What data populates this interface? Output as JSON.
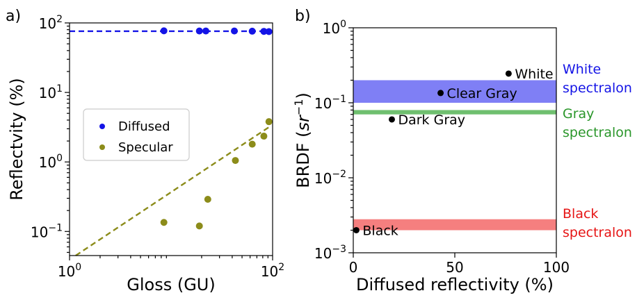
{
  "chart_data": [
    {
      "type": "scatter",
      "panel_label": "a)",
      "xlabel": "Gloss (GU)",
      "ylabel": "Reflectvity (%)",
      "xscale": "log",
      "yscale": "log",
      "xlim": [
        1,
        100
      ],
      "ylim": [
        0.045,
        100
      ],
      "x_ticks": [
        {
          "value": 1,
          "base": "10",
          "exp": "0"
        },
        {
          "value": 100,
          "base": "10",
          "exp": "2"
        }
      ],
      "y_ticks": [
        {
          "value": 0.1,
          "base": "10",
          "exp": "−1"
        },
        {
          "value": 1,
          "base": "10",
          "exp": "0"
        },
        {
          "value": 10,
          "base": "10",
          "exp": "1"
        },
        {
          "value": 100,
          "base": "10",
          "exp": "2"
        }
      ],
      "legend": {
        "position": "center-left"
      },
      "series": [
        {
          "name": "Diffused",
          "color": "#1414e6",
          "x": [
            8.5,
            19,
            22,
            42,
            63,
            82,
            92
          ],
          "y": [
            77,
            76.5,
            76.5,
            76.5,
            76,
            75.5,
            75
          ],
          "fit": {
            "x": [
              1,
              100
            ],
            "y": [
              76,
              76
            ]
          }
        },
        {
          "name": "Specular",
          "color": "#8c8c1a",
          "x": [
            8.5,
            19,
            23,
            43,
            63,
            82,
            92
          ],
          "y": [
            0.135,
            0.12,
            0.29,
            1.05,
            1.8,
            2.35,
            3.8
          ],
          "fit": {
            "x": [
              1.15,
              96
            ],
            "y": [
              0.045,
              3.3
            ]
          }
        }
      ]
    },
    {
      "type": "scatter",
      "panel_label": "b)",
      "xlabel": "Diffused reflectivity (%)",
      "ylabel_main": "BRDF (",
      "ylabel_unit": "sr",
      "ylabel_exp": "−1",
      "ylabel_close": ")",
      "xscale": "linear",
      "yscale": "log",
      "xlim": [
        0,
        100
      ],
      "ylim": [
        0.001,
        1
      ],
      "x_ticks": [
        {
          "value": 0,
          "label": "0"
        },
        {
          "value": 50,
          "label": "50"
        },
        {
          "value": 100,
          "label": "100"
        }
      ],
      "y_ticks": [
        {
          "value": 0.001,
          "base": "10",
          "exp": "−3"
        },
        {
          "value": 0.01,
          "base": "10",
          "exp": "−2"
        },
        {
          "value": 0.1,
          "base": "10",
          "exp": "−1"
        },
        {
          "value": 1,
          "base": "10",
          "exp": "0"
        }
      ],
      "bands": [
        {
          "name_line1": "White",
          "name_line2": "spectralon",
          "color": "#1414e6",
          "fill": "#7f7ff5",
          "ymin": 0.1,
          "ymax": 0.2
        },
        {
          "name_line1": "Gray",
          "name_line2": "spectralon",
          "color": "#2a962a",
          "fill": "#6fbf6f",
          "ymin": 0.07,
          "ymax": 0.08
        },
        {
          "name_line1": "Black",
          "name_line2": "spectralon",
          "color": "#e61414",
          "fill": "#f57f7f",
          "ymin": 0.002,
          "ymax": 0.0028
        }
      ],
      "points": [
        {
          "label": "White",
          "x": 76.5,
          "y": 0.245
        },
        {
          "label": "Clear Gray",
          "x": 43,
          "y": 0.135
        },
        {
          "label": "Dark Gray",
          "x": 19,
          "y": 0.06
        },
        {
          "label": "Black",
          "x": 1.5,
          "y": 0.002
        }
      ]
    }
  ]
}
